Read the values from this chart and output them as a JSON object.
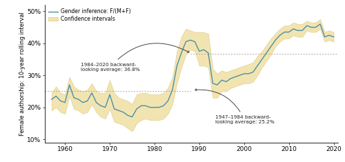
{
  "years": [
    1957,
    1958,
    1959,
    1960,
    1961,
    1962,
    1963,
    1964,
    1965,
    1966,
    1967,
    1968,
    1969,
    1970,
    1971,
    1972,
    1973,
    1974,
    1975,
    1976,
    1977,
    1978,
    1979,
    1980,
    1981,
    1982,
    1983,
    1984,
    1985,
    1986,
    1987,
    1988,
    1989,
    1990,
    1991,
    1992,
    1993,
    1994,
    1995,
    1996,
    1997,
    1998,
    1999,
    2000,
    2001,
    2002,
    2003,
    2004,
    2005,
    2006,
    2007,
    2008,
    2009,
    2010,
    2011,
    2012,
    2013,
    2014,
    2015,
    2016,
    2017,
    2018,
    2019,
    2020
  ],
  "female_pct": [
    22.5,
    23.5,
    22.0,
    21.5,
    27.0,
    23.0,
    22.5,
    21.5,
    22.0,
    24.5,
    21.5,
    20.5,
    20.0,
    24.0,
    19.5,
    19.0,
    18.5,
    17.5,
    17.0,
    19.5,
    20.5,
    20.5,
    20.0,
    20.0,
    20.0,
    20.5,
    22.0,
    25.5,
    33.0,
    37.0,
    40.5,
    41.0,
    40.5,
    37.5,
    38.0,
    37.0,
    27.5,
    27.0,
    28.5,
    28.0,
    29.0,
    29.5,
    30.0,
    30.5,
    30.5,
    31.0,
    33.0,
    35.0,
    37.0,
    39.0,
    41.0,
    42.5,
    43.5,
    43.5,
    44.5,
    44.0,
    44.0,
    45.5,
    45.0,
    45.0,
    46.0,
    42.0,
    42.5,
    42.0
  ],
  "ci_upper": [
    24.5,
    26.5,
    24.5,
    24.0,
    29.5,
    26.5,
    25.5,
    25.0,
    25.5,
    27.5,
    25.0,
    24.5,
    24.5,
    28.5,
    24.5,
    23.0,
    22.5,
    22.0,
    21.0,
    24.0,
    24.5,
    24.5,
    24.0,
    24.0,
    24.0,
    24.5,
    26.0,
    29.5,
    37.5,
    42.0,
    44.5,
    44.0,
    43.5,
    43.5,
    43.5,
    43.0,
    32.0,
    30.5,
    31.5,
    31.0,
    31.5,
    32.0,
    32.5,
    33.0,
    33.5,
    34.0,
    36.0,
    37.5,
    39.5,
    41.5,
    43.0,
    44.5,
    45.5,
    45.5,
    46.5,
    46.0,
    46.0,
    47.0,
    46.5,
    46.5,
    47.5,
    43.5,
    44.0,
    43.5
  ],
  "ci_lower": [
    19.0,
    20.0,
    18.5,
    18.0,
    23.5,
    19.5,
    19.0,
    18.0,
    18.5,
    21.0,
    18.5,
    17.0,
    16.5,
    19.5,
    15.5,
    15.0,
    14.5,
    13.5,
    12.5,
    15.0,
    16.0,
    16.5,
    16.0,
    16.0,
    16.0,
    16.5,
    18.0,
    21.0,
    27.5,
    32.5,
    36.5,
    38.0,
    37.5,
    33.0,
    33.0,
    32.5,
    23.0,
    23.0,
    25.0,
    25.0,
    26.0,
    26.5,
    27.0,
    27.5,
    27.5,
    28.0,
    30.0,
    32.5,
    34.5,
    36.5,
    39.0,
    40.5,
    41.5,
    41.5,
    42.5,
    42.0,
    42.0,
    44.0,
    43.5,
    43.5,
    44.5,
    40.5,
    41.0,
    40.5
  ],
  "avg_1947_1984": 25.2,
  "avg_1984_2020": 36.8,
  "line_color": "#4a8fa8",
  "ci_fill_color": "#f2e4b0",
  "ci_edge_color": "#dcc882",
  "avg_line_color": "#b0a898",
  "arrow_color": "#444444",
  "background_color": "#ffffff",
  "ylabel": "Female authorship: 10-year rolling interval",
  "yticks": [
    10,
    20,
    30,
    40,
    50
  ],
  "xticks": [
    1960,
    1970,
    1980,
    1990,
    2000,
    2010,
    2020
  ],
  "xlim": [
    1955.5,
    2021
  ],
  "ylim": [
    9,
    52
  ],
  "legend_label_line": "Gender inference: F/(M+F)",
  "legend_label_ci": "Confidence intervals",
  "annot1_text": "1984–2020 backward-\nlooking average: 36.8%",
  "annot2_text": "1947–1984 backward-\nlooking average: 25.2%"
}
